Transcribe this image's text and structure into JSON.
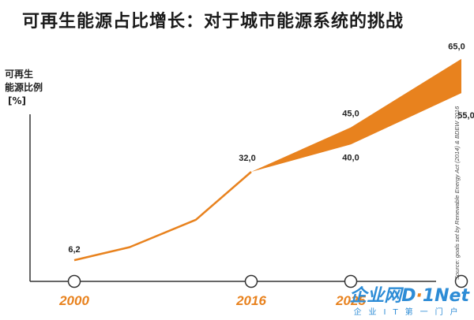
{
  "title": "可再生能源占比增长：对于城市能源系统的挑战",
  "chart_data": {
    "type": "area",
    "ylabel_lines": [
      "可再生",
      "能源比例",
      "[%]"
    ],
    "x_ticks": [
      "2000",
      "2016",
      "2025"
    ],
    "x_domain": [
      1996,
      2036
    ],
    "ylim": [
      0,
      70
    ],
    "line_series": [
      {
        "x": 2000,
        "y": 6.2
      },
      {
        "x": 2005,
        "y": 10
      },
      {
        "x": 2011,
        "y": 18
      },
      {
        "x": 2016,
        "y": 32.0
      }
    ],
    "band": {
      "start": {
        "x": 2016,
        "y": 32.0
      },
      "upper": [
        {
          "x": 2025,
          "y": 45.0
        },
        {
          "x": 2035,
          "y": 65.0
        }
      ],
      "lower": [
        {
          "x": 2025,
          "y": 40.0
        },
        {
          "x": 2035,
          "y": 55.0
        }
      ]
    },
    "data_labels": [
      {
        "text": "6,2",
        "x": 2000,
        "y": 6.2
      },
      {
        "text": "32,0",
        "x": 2016,
        "y": 32.0
      },
      {
        "text": "45,0",
        "x": 2025,
        "y": 45.0
      },
      {
        "text": "40,0",
        "x": 2025,
        "y": 40.0
      },
      {
        "text": "65,0",
        "x": 2035,
        "y": 65.0
      },
      {
        "text": "55,0",
        "x": 2035,
        "y": 55.0
      }
    ],
    "markers_x": [
      2000,
      2016,
      2025,
      2035
    ],
    "source": "Source: goals set by Renewable Energy Act (2014) & BDEW 2016",
    "color": "#e8821e",
    "grid": false,
    "legend": "none"
  },
  "watermark": {
    "big_a": "企业网",
    "big_b": "D",
    "big_c": "1Net",
    "small": "企业IT第一门户"
  }
}
